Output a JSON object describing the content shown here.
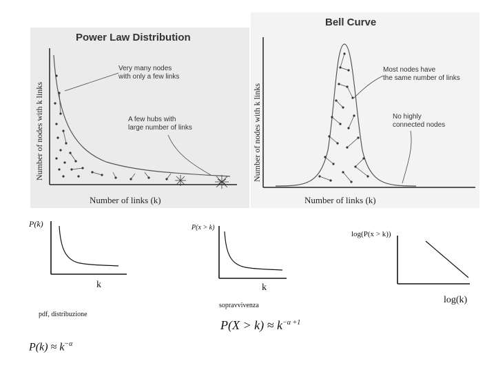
{
  "power_law_panel": {
    "title": "Power Law Distribution",
    "ylabel": "Number of nodes with k links",
    "xlabel": "Number of links (k)",
    "note_many": "Very many nodes\nwith only a few links",
    "note_hubs": "A few hubs with\nlarge number of links"
  },
  "bell_panel": {
    "title": "Bell Curve",
    "ylabel": "Number of nodes with k links",
    "xlabel": "Number of links (k)",
    "note_same": "Most nodes have\nthe same number of links",
    "note_none": "No highly\nconnected nodes"
  },
  "plot_pdf": {
    "ylabel": "P(k)",
    "xlabel": "k",
    "caption": "pdf, distribuzione"
  },
  "plot_survival": {
    "ylabel": "P(x > k)",
    "xlabel": "k",
    "caption": "sopravvivenza"
  },
  "plot_loglog": {
    "ylabel": "log(P(x > k))",
    "xlabel": "log(k)"
  },
  "formula_pdf": {
    "lhs": "P(k) ≈ k",
    "exp": "−α"
  },
  "formula_survival": {
    "lhs": "P(X > k) ≈ k",
    "exp": "−α +1"
  }
}
